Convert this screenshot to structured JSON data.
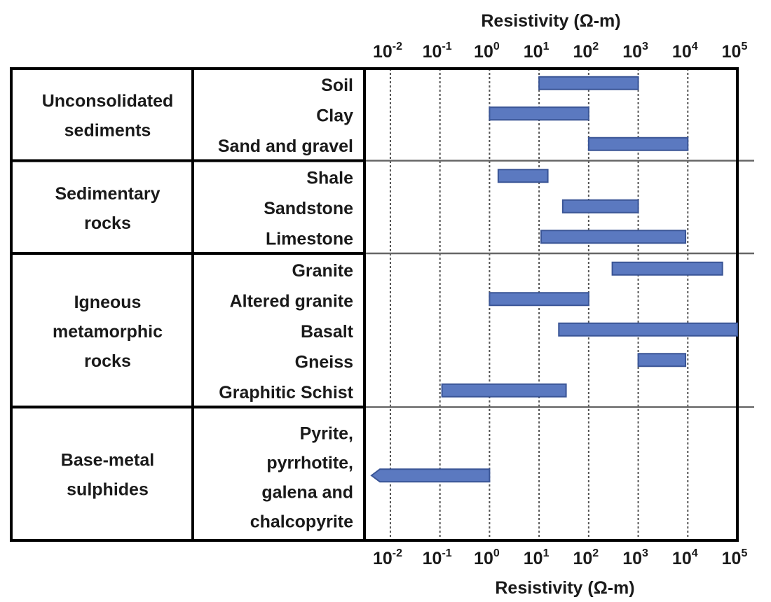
{
  "chart_data": {
    "type": "bar",
    "orientation": "horizontal-range",
    "xscale": "log",
    "xlim": [
      0.003,
      100000
    ],
    "x_axis_title_top": "Resistivity (Ω-m)",
    "x_axis_title_bottom": "Resistivity (Ω-m)",
    "x_ticks": [
      {
        "base": "10",
        "exp": "-2",
        "value": 0.01
      },
      {
        "base": "10",
        "exp": "-1",
        "value": 0.1
      },
      {
        "base": "10",
        "exp": "0",
        "value": 1
      },
      {
        "base": "10",
        "exp": "1",
        "value": 10
      },
      {
        "base": "10",
        "exp": "2",
        "value": 100
      },
      {
        "base": "10",
        "exp": "3",
        "value": 1000
      },
      {
        "base": "10",
        "exp": "4",
        "value": 10000
      },
      {
        "base": "10",
        "exp": "5",
        "value": 100000
      }
    ],
    "grid": true,
    "groups": [
      {
        "label_lines": [
          "Unconsolidated",
          "sediments"
        ],
        "rows": [
          0,
          1,
          2
        ]
      },
      {
        "label_lines": [
          "Sedimentary",
          "rocks"
        ],
        "rows": [
          3,
          4,
          5
        ]
      },
      {
        "label_lines": [
          "Igneous",
          "metamorphic",
          "rocks"
        ],
        "rows": [
          6,
          7,
          8,
          9,
          10
        ]
      },
      {
        "label_lines": [
          "Base-metal",
          "sulphides"
        ],
        "rows": [
          11
        ]
      }
    ],
    "rows": [
      {
        "label_lines": [
          "Soil"
        ],
        "min": 10,
        "max": 1000
      },
      {
        "label_lines": [
          "Clay"
        ],
        "min": 1,
        "max": 100
      },
      {
        "label_lines": [
          "Sand and gravel"
        ],
        "min": 100,
        "max": 10000
      },
      {
        "label_lines": [
          "Shale"
        ],
        "min": 1.5,
        "max": 15
      },
      {
        "label_lines": [
          "Sandstone"
        ],
        "min": 30,
        "max": 1000
      },
      {
        "label_lines": [
          "Limestone"
        ],
        "min": 11,
        "max": 9000
      },
      {
        "label_lines": [
          "Granite"
        ],
        "min": 300,
        "max": 50000
      },
      {
        "label_lines": [
          "Altered granite"
        ],
        "min": 1,
        "max": 100
      },
      {
        "label_lines": [
          "Basalt"
        ],
        "min": 25,
        "max": 100000
      },
      {
        "label_lines": [
          "Gneiss"
        ],
        "min": 1000,
        "max": 9000
      },
      {
        "label_lines": [
          "Graphitic Schist"
        ],
        "min": 0.11,
        "max": 35
      },
      {
        "label_lines": [
          "Pyrite,",
          "pyrrhotite,",
          "galena and",
          "chalcopyrite"
        ],
        "min": 0.003,
        "max": 1,
        "open_left": true
      }
    ]
  }
}
